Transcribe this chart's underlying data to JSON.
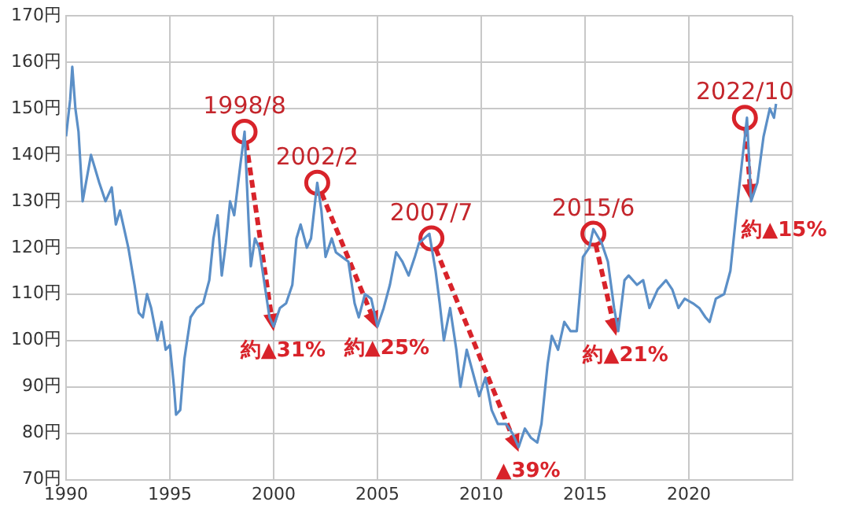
{
  "chart_data": {
    "type": "line",
    "color": "#5b8fc7",
    "marker": "none",
    "grid": true,
    "x": [
      1990.0,
      1990.2,
      1990.3,
      1990.45,
      1990.6,
      1990.8,
      1991.0,
      1991.2,
      1991.4,
      1991.6,
      1991.9,
      1992.2,
      1992.4,
      1992.6,
      1992.8,
      1993.0,
      1993.3,
      1993.5,
      1993.7,
      1993.9,
      1994.1,
      1994.4,
      1994.6,
      1994.8,
      1995.0,
      1995.2,
      1995.3,
      1995.5,
      1995.7,
      1996.0,
      1996.3,
      1996.6,
      1996.9,
      1997.1,
      1997.3,
      1997.5,
      1997.7,
      1997.9,
      1998.1,
      1998.4,
      1998.6,
      1998.8,
      1998.9,
      1999.1,
      1999.3,
      1999.5,
      1999.8,
      2000.0,
      2000.3,
      2000.6,
      2000.9,
      2001.1,
      2001.3,
      2001.6,
      2001.8,
      2002.1,
      2002.3,
      2002.5,
      2002.8,
      2003.0,
      2003.3,
      2003.6,
      2003.9,
      2004.1,
      2004.4,
      2004.7,
      2005.0,
      2005.3,
      2005.6,
      2005.9,
      2006.2,
      2006.5,
      2006.8,
      2007.0,
      2007.5,
      2007.8,
      2008.0,
      2008.2,
      2008.5,
      2008.8,
      2009.0,
      2009.3,
      2009.6,
      2009.9,
      2010.2,
      2010.5,
      2010.8,
      2011.2,
      2011.5,
      2011.8,
      2012.1,
      2012.4,
      2012.7,
      2012.9,
      2013.2,
      2013.4,
      2013.7,
      2014.0,
      2014.3,
      2014.6,
      2014.9,
      2015.2,
      2015.4,
      2015.8,
      2016.1,
      2016.4,
      2016.6,
      2016.9,
      2017.1,
      2017.5,
      2017.8,
      2018.1,
      2018.5,
      2018.9,
      2019.2,
      2019.5,
      2019.8,
      2020.2,
      2020.5,
      2020.8,
      2021.0,
      2021.3,
      2021.7,
      2022.0,
      2022.3,
      2022.6,
      2022.8,
      2023.0,
      2023.3,
      2023.6,
      2023.9,
      2024.1,
      2024.2
    ],
    "values": [
      144,
      152,
      159,
      150,
      145,
      130,
      135,
      140,
      137,
      134,
      130,
      133,
      125,
      128,
      124,
      120,
      112,
      106,
      105,
      110,
      107,
      100,
      104,
      98,
      99,
      90,
      84,
      85,
      96,
      105,
      107,
      108,
      113,
      122,
      127,
      114,
      121,
      130,
      127,
      138,
      145,
      125,
      116,
      122,
      120,
      114,
      105,
      103,
      107,
      108,
      112,
      122,
      125,
      120,
      122,
      134,
      128,
      118,
      122,
      119,
      118,
      117,
      108,
      105,
      110,
      109,
      103,
      107,
      112,
      119,
      117,
      114,
      118,
      121,
      123,
      115,
      108,
      100,
      107,
      98,
      90,
      98,
      93,
      88,
      92,
      85,
      82,
      82,
      80,
      77,
      81,
      79,
      78,
      82,
      95,
      101,
      98,
      104,
      102,
      102,
      118,
      120,
      124,
      121,
      117,
      107,
      102,
      113,
      114,
      112,
      113,
      107,
      111,
      113,
      111,
      107,
      109,
      108,
      107,
      105,
      104,
      109,
      110,
      115,
      128,
      140,
      148,
      130,
      134,
      144,
      150,
      148,
      151
    ],
    "xlim": [
      1990,
      2025
    ],
    "xticks": [
      1990,
      1995,
      2000,
      2005,
      2010,
      2015,
      2020,
      {
        "value": 2025,
        "label": null
      }
    ],
    "ylim": [
      70,
      170
    ],
    "yticks": [
      {
        "value": 70,
        "label": "70円"
      },
      {
        "value": 80,
        "label": "80円"
      },
      {
        "value": 90,
        "label": "90円"
      },
      {
        "value": 100,
        "label": "100円"
      },
      {
        "value": 110,
        "label": "110円"
      },
      {
        "value": 120,
        "label": "120円"
      },
      {
        "value": 130,
        "label": "130円"
      },
      {
        "value": 140,
        "label": "140円"
      },
      {
        "value": 150,
        "label": "150円"
      },
      {
        "value": 160,
        "label": "160円"
      },
      {
        "value": 170,
        "label": "170円"
      }
    ],
    "annotations": [
      {
        "text": "1998/8",
        "x": 1998.6,
        "y": 145
      },
      {
        "text": "約▲31%",
        "x": 2000.0,
        "y": 102
      },
      {
        "text": "2002/2",
        "x": 2002.1,
        "y": 134
      },
      {
        "text": "約▲25%",
        "x": 2005.0,
        "y": 102.5
      },
      {
        "text": "2007/7",
        "x": 2007.6,
        "y": 122
      },
      {
        "text": "▲39%",
        "x": 2011.8,
        "y": 76
      },
      {
        "text": "2015/6",
        "x": 2015.4,
        "y": 123
      },
      {
        "text": "約▲21%",
        "x": 2016.5,
        "y": 101
      },
      {
        "text": "2022/10",
        "x": 2022.7,
        "y": 148
      },
      {
        "text": "約▲15%",
        "x": 2023.0,
        "y": 130
      }
    ]
  }
}
